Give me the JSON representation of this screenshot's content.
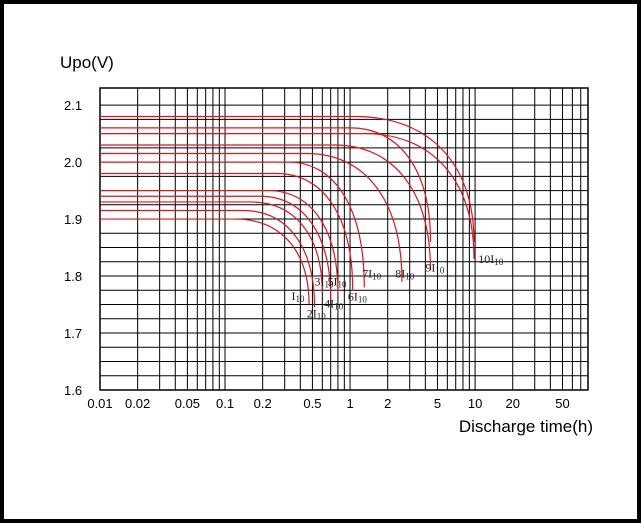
{
  "chart_data": {
    "type": "line",
    "title": "",
    "ylabel": "Upo(V)",
    "xlabel": "Discharge time(h)",
    "x_scale": "log",
    "xlim": [
      0.01,
      80
    ],
    "ylim": [
      1.6,
      2.13
    ],
    "grid": true,
    "line_color": "#e0141e",
    "x_ticks": [
      {
        "v": 0.01,
        "label": "0.01"
      },
      {
        "v": 0.02,
        "label": "0.02"
      },
      {
        "v": 0.05,
        "label": "0.05"
      },
      {
        "v": 0.1,
        "label": "0.1"
      },
      {
        "v": 0.2,
        "label": "0.2"
      },
      {
        "v": 0.5,
        "label": "0.5"
      },
      {
        "v": 1,
        "label": "1"
      },
      {
        "v": 2,
        "label": "2"
      },
      {
        "v": 5,
        "label": "5"
      },
      {
        "v": 10,
        "label": "10"
      },
      {
        "v": 20,
        "label": "20"
      },
      {
        "v": 50,
        "label": "50"
      }
    ],
    "y_ticks": [
      {
        "v": 1.6,
        "label": "1.6"
      },
      {
        "v": 1.7,
        "label": "1.7"
      },
      {
        "v": 1.8,
        "label": "1.8"
      },
      {
        "v": 1.9,
        "label": "1.9"
      },
      {
        "v": 2.0,
        "label": "2.0"
      },
      {
        "v": 2.1,
        "label": "2.1"
      }
    ],
    "series": [
      {
        "label": "I10",
        "plateau": 1.9,
        "knee_t": 0.12,
        "end_t": 0.47,
        "end_v": 1.75,
        "label_x": 0.34,
        "label_y": 1.758
      },
      {
        "label": "2I10",
        "plateau": 1.915,
        "knee_t": 0.14,
        "end_t": 0.52,
        "end_v": 1.745,
        "label_x": 0.45,
        "label_y": 1.727
      },
      {
        "label": "3I10",
        "plateau": 1.93,
        "knee_t": 0.16,
        "end_t": 0.6,
        "end_v": 1.77,
        "label_x": 0.52,
        "label_y": 1.783
      },
      {
        "label": "4I10",
        "plateau": 1.94,
        "knee_t": 0.19,
        "end_t": 0.7,
        "end_v": 1.76,
        "label_x": 0.62,
        "label_y": 1.745
      },
      {
        "label": "5I10",
        "plateau": 1.95,
        "knee_t": 0.22,
        "end_t": 0.8,
        "end_v": 1.77,
        "label_x": 0.66,
        "label_y": 1.783
      },
      {
        "label": "6I10",
        "plateau": 1.98,
        "knee_t": 0.26,
        "end_t": 1.05,
        "end_v": 1.775,
        "label_x": 0.96,
        "label_y": 1.757
      },
      {
        "label": "7I10",
        "plateau": 2.0,
        "knee_t": 0.32,
        "end_t": 1.3,
        "end_v": 1.78,
        "label_x": 1.25,
        "label_y": 1.797
      },
      {
        "label": "8I10",
        "plateau": 2.015,
        "knee_t": 0.45,
        "end_t": 2.6,
        "end_v": 1.79,
        "label_x": 2.3,
        "label_y": 1.797
      },
      {
        "label": "9I10",
        "plateau": 2.03,
        "knee_t": 0.75,
        "end_t": 4.4,
        "end_v": 1.81,
        "label_x": 4.0,
        "label_y": 1.808
      },
      {
        "label": "10I10",
        "plateau": 2.05,
        "knee_t": 1.3,
        "end_t": 9.8,
        "end_v": 1.83,
        "label_x": 10.6,
        "label_y": 1.823
      },
      {
        "label": "",
        "plateau": 2.06,
        "knee_t": 1.0,
        "end_t": 4.4,
        "end_v": 1.86,
        "label_x": 0,
        "label_y": 0
      },
      {
        "label": "",
        "plateau": 2.08,
        "knee_t": 1.1,
        "end_t": 9.8,
        "end_v": 1.86,
        "label_x": 0,
        "label_y": 0
      }
    ]
  }
}
